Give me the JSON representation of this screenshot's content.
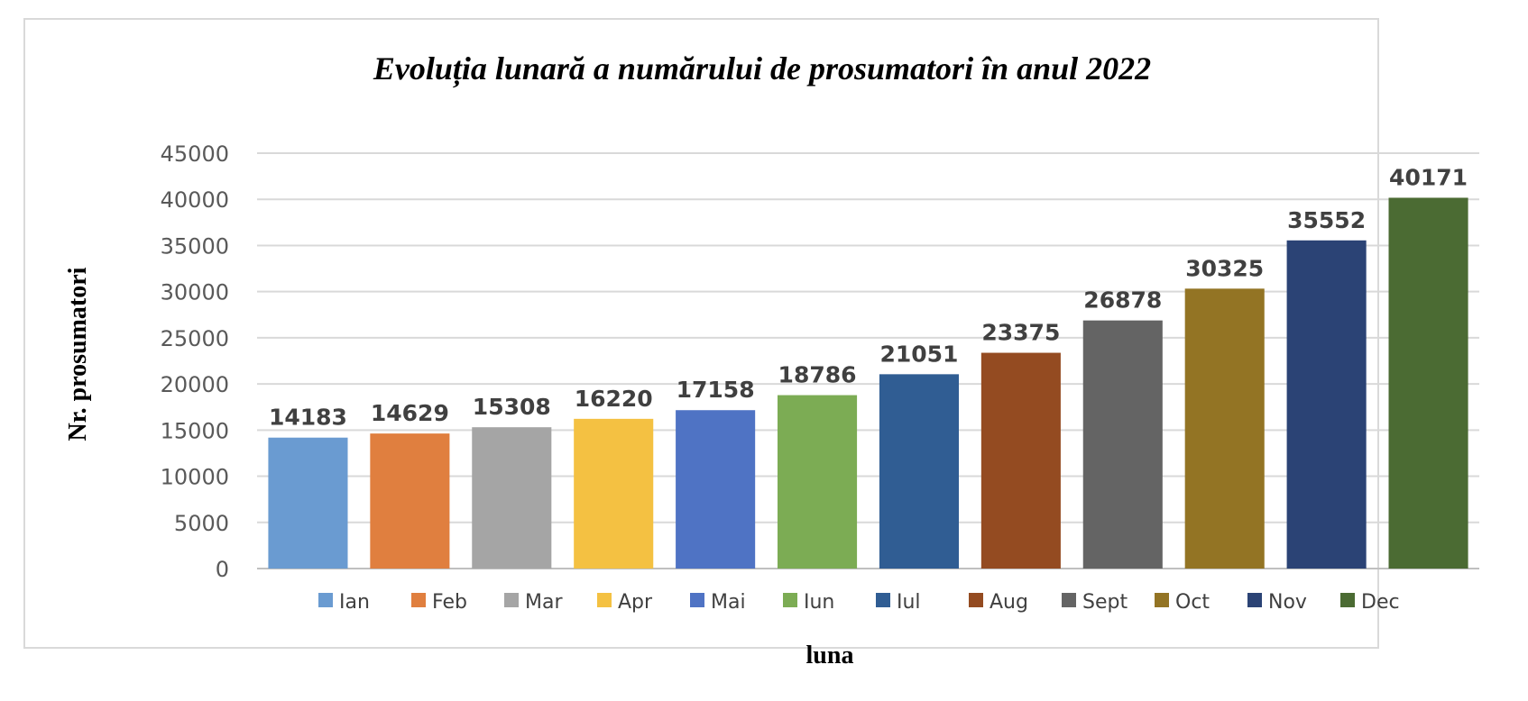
{
  "chart_data": {
    "type": "bar",
    "title": "Evoluția lunară a numărului de prosumatori în anul 2022",
    "xlabel": "luna",
    "ylabel": "Nr. prosumatori",
    "categories": [
      "Ian",
      "Feb",
      "Mar",
      "Apr",
      "Mai",
      "Iun",
      "Iul",
      "Aug",
      "Sept",
      "Oct",
      "Nov",
      "Dec"
    ],
    "values": [
      14183,
      14629,
      15308,
      16220,
      17158,
      18786,
      21051,
      23375,
      26878,
      30325,
      35552,
      40171
    ],
    "colors": [
      "#6a9bd1",
      "#e07f3f",
      "#a5a5a5",
      "#f4c142",
      "#4f73c4",
      "#7cac54",
      "#305d93",
      "#944b21",
      "#646464",
      "#937424",
      "#2b4375",
      "#4b6b33"
    ],
    "ylim": [
      0,
      45000
    ],
    "yticks": [
      0,
      5000,
      10000,
      15000,
      20000,
      25000,
      30000,
      35000,
      40000,
      45000
    ],
    "grid": true,
    "legend_position": "bottom",
    "data_labels": true
  }
}
